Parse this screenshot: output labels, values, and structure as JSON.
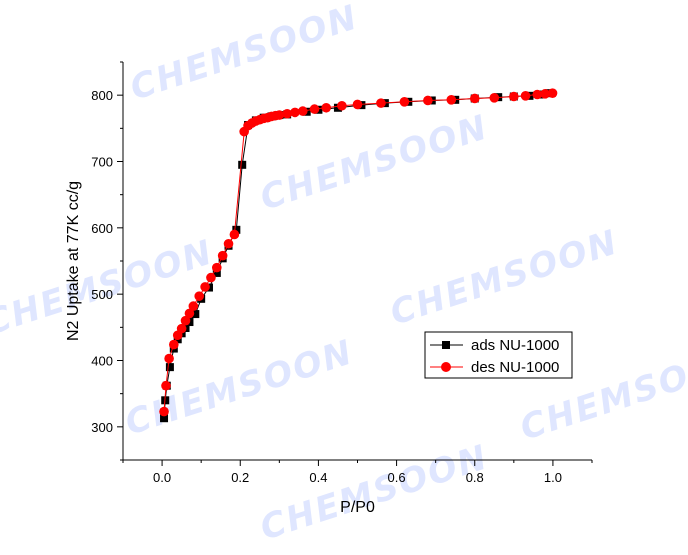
{
  "watermarks": [
    "CHEMSOON",
    "CHEMSOON",
    "CHEMSOON",
    "CHEMSOON",
    "CHEMSOON",
    "CHEMSOON",
    "CHEMSOON"
  ],
  "chart_data": {
    "type": "scatter",
    "xlabel": "P/P0",
    "ylabel": "N2 Uptake at 77K cc/g",
    "xlim": [
      -0.1,
      1.1
    ],
    "ylim": [
      250,
      850
    ],
    "xticks": [
      "0.0",
      "0.2",
      "0.4",
      "0.6",
      "0.8",
      "1.0"
    ],
    "yticks": [
      "300",
      "400",
      "500",
      "600",
      "700",
      "800"
    ],
    "legend_position": "right-middle",
    "series": [
      {
        "name": "ads NU-1000",
        "color": "#000000",
        "marker": "square",
        "points": [
          [
            0.005,
            313
          ],
          [
            0.008,
            340
          ],
          [
            0.012,
            362
          ],
          [
            0.02,
            390
          ],
          [
            0.03,
            418
          ],
          [
            0.04,
            432
          ],
          [
            0.05,
            441
          ],
          [
            0.06,
            449
          ],
          [
            0.07,
            458
          ],
          [
            0.085,
            470
          ],
          [
            0.1,
            493
          ],
          [
            0.12,
            510
          ],
          [
            0.14,
            532
          ],
          [
            0.155,
            554
          ],
          [
            0.17,
            573
          ],
          [
            0.19,
            597
          ],
          [
            0.205,
            695
          ],
          [
            0.22,
            755
          ],
          [
            0.24,
            762
          ],
          [
            0.26,
            766
          ],
          [
            0.28,
            768
          ],
          [
            0.3,
            770
          ],
          [
            0.32,
            771
          ],
          [
            0.37,
            775
          ],
          [
            0.4,
            778
          ],
          [
            0.45,
            781
          ],
          [
            0.51,
            785
          ],
          [
            0.57,
            788
          ],
          [
            0.63,
            790
          ],
          [
            0.69,
            792
          ],
          [
            0.75,
            793
          ],
          [
            0.8,
            795
          ],
          [
            0.86,
            797
          ],
          [
            0.9,
            798
          ],
          [
            0.94,
            799
          ],
          [
            0.97,
            801
          ],
          [
            0.99,
            803
          ]
        ]
      },
      {
        "name": "des NU-1000",
        "color": "#ff0000",
        "marker": "circle",
        "points": [
          [
            0.999,
            803
          ],
          [
            0.98,
            802
          ],
          [
            0.96,
            801
          ],
          [
            0.93,
            799
          ],
          [
            0.9,
            798
          ],
          [
            0.85,
            796
          ],
          [
            0.8,
            795
          ],
          [
            0.74,
            793
          ],
          [
            0.68,
            792
          ],
          [
            0.62,
            790
          ],
          [
            0.56,
            788
          ],
          [
            0.5,
            786
          ],
          [
            0.46,
            784
          ],
          [
            0.42,
            781
          ],
          [
            0.39,
            779
          ],
          [
            0.36,
            776
          ],
          [
            0.34,
            774
          ],
          [
            0.32,
            772
          ],
          [
            0.3,
            770
          ],
          [
            0.29,
            769
          ],
          [
            0.28,
            768
          ],
          [
            0.27,
            766
          ],
          [
            0.26,
            765
          ],
          [
            0.25,
            763
          ],
          [
            0.24,
            761
          ],
          [
            0.23,
            758
          ],
          [
            0.22,
            754
          ],
          [
            0.21,
            745
          ],
          [
            0.185,
            590
          ],
          [
            0.17,
            576
          ],
          [
            0.155,
            558
          ],
          [
            0.14,
            540
          ],
          [
            0.125,
            525
          ],
          [
            0.11,
            511
          ],
          [
            0.095,
            497
          ],
          [
            0.08,
            482
          ],
          [
            0.07,
            471
          ],
          [
            0.06,
            460
          ],
          [
            0.05,
            448
          ],
          [
            0.04,
            438
          ],
          [
            0.03,
            424
          ],
          [
            0.018,
            403
          ],
          [
            0.01,
            362
          ],
          [
            0.005,
            323
          ]
        ]
      }
    ]
  }
}
